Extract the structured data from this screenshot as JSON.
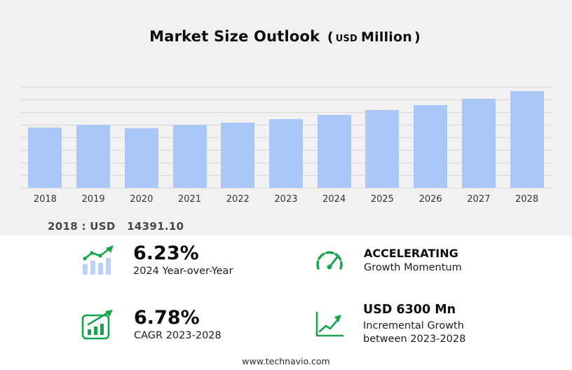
{
  "title": {
    "main": "Market Size Outlook",
    "open": "(",
    "unit_small": "USD",
    "unit_big": "Million",
    "close": ")"
  },
  "chart_data": {
    "type": "bar",
    "title": "Market Size Outlook (USD Million)",
    "categories": [
      "2018",
      "2019",
      "2020",
      "2021",
      "2022",
      "2023",
      "2024",
      "2025",
      "2026",
      "2027",
      "2028"
    ],
    "values": [
      14391.1,
      15000,
      14240,
      15000,
      15470,
      16237,
      17248,
      18300,
      19500,
      20900,
      22537
    ],
    "unit": "USD Million",
    "ylabel": "",
    "xlabel": "",
    "ylim": [
      1000,
      23500
    ],
    "grid": "horizontal",
    "legend": "none",
    "bar_color": "#a9c7f7",
    "annotation": "2018 : USD 14391.10"
  },
  "annotation": {
    "prefix": "2018 : USD",
    "amount": "14391.10"
  },
  "stats": [
    {
      "id": "yoy",
      "icon": "bar-growth-icon",
      "value": "6.23%",
      "label": "2024 Year-over-Year"
    },
    {
      "id": "momentum",
      "icon": "speedometer-icon",
      "value": "ACCELERATING",
      "label": "Growth Momentum"
    },
    {
      "id": "cagr",
      "icon": "chart-board-icon",
      "value": "6.78%",
      "label": "CAGR 2023-2028"
    },
    {
      "id": "incremental",
      "icon": "growth-line-icon",
      "value": "USD 6300 Mn",
      "label": "Incremental Growth between 2023-2028"
    }
  ],
  "footer": {
    "url": "www.technavio.com"
  },
  "colors": {
    "accent_green": "#16a34a",
    "bar_blue": "#a9c7f7",
    "icon_bar_blue": "#b9d2f8",
    "background": "#f1f1f1",
    "panel": "#ffffff"
  }
}
